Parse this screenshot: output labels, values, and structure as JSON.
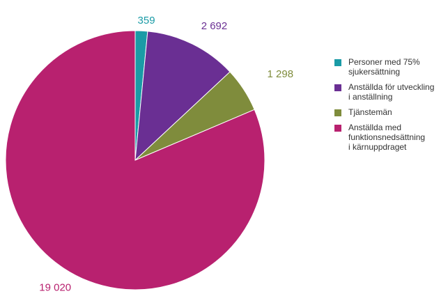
{
  "chart_data": {
    "type": "pie",
    "categories": [
      "Personer med 75%\nsjukersättning",
      "Anställda för utveckling\ni anställning",
      "Tjänstemän",
      "Anställda med\nfunktionsnedsättning\ni kärnuppdraget"
    ],
    "values": [
      359,
      2692,
      1298,
      19020
    ],
    "value_labels": [
      "359",
      "2 692",
      "1 298",
      "19 020"
    ],
    "colors": [
      "#1a9ba6",
      "#6a2f93",
      "#7f8c3c",
      "#b8216f"
    ],
    "legend_position": "right",
    "start_angle": "12 o'clock",
    "direction": "clockwise"
  }
}
